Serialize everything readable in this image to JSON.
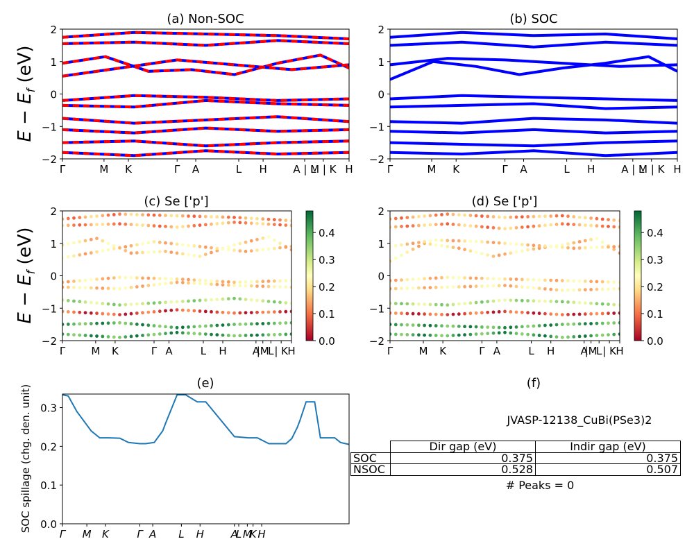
{
  "y_axis_label_top": "E − E",
  "y_axis_label_sub": "f",
  "y_axis_label_unit": " (eV)",
  "chart_data": [
    {
      "type": "line",
      "title": "(a) Non-SOC",
      "ylim": [
        -2,
        2
      ],
      "yticks": [
        "2",
        "1",
        "0",
        "−1",
        "−2"
      ],
      "xticks": [
        "Γ",
        "M",
        "K",
        "Γ",
        "A",
        "L",
        "H",
        "A | L",
        "M | K",
        "H"
      ],
      "colors": {
        "spin_up": "#0000ff",
        "spin_down": "#ff0000"
      },
      "series": [
        {
          "x": [
            0,
            0.15,
            0.3,
            0.45,
            0.6,
            0.75,
            0.9,
            1.0
          ],
          "y": [
            0.95,
            1.15,
            0.7,
            0.75,
            0.6,
            0.95,
            1.2,
            0.8
          ]
        },
        {
          "x": [
            0,
            0.2,
            0.4,
            0.6,
            0.8,
            1.0
          ],
          "y": [
            0.55,
            0.8,
            1.05,
            0.9,
            0.75,
            0.9
          ]
        },
        {
          "x": [
            0,
            0.25,
            0.5,
            0.75,
            1.0
          ],
          "y": [
            1.55,
            1.6,
            1.5,
            1.65,
            1.55
          ]
        },
        {
          "x": [
            0,
            0.25,
            0.5,
            0.75,
            1.0
          ],
          "y": [
            1.75,
            1.9,
            1.85,
            1.8,
            1.7
          ]
        },
        {
          "x": [
            0,
            0.25,
            0.5,
            0.75,
            1.0
          ],
          "y": [
            -0.2,
            -0.05,
            -0.1,
            -0.2,
            -0.15
          ]
        },
        {
          "x": [
            0,
            0.25,
            0.5,
            0.75,
            1.0
          ],
          "y": [
            -0.35,
            -0.4,
            -0.2,
            -0.3,
            -0.35
          ]
        },
        {
          "x": [
            0,
            0.25,
            0.5,
            0.75,
            1.0
          ],
          "y": [
            -0.75,
            -0.9,
            -0.8,
            -0.7,
            -0.85
          ]
        },
        {
          "x": [
            0,
            0.25,
            0.5,
            0.75,
            1.0
          ],
          "y": [
            -1.1,
            -1.2,
            -1.05,
            -1.15,
            -1.1
          ]
        },
        {
          "x": [
            0,
            0.25,
            0.5,
            0.75,
            1.0
          ],
          "y": [
            -1.5,
            -1.45,
            -1.6,
            -1.5,
            -1.45
          ]
        },
        {
          "x": [
            0,
            0.25,
            0.5,
            0.75,
            1.0
          ],
          "y": [
            -1.8,
            -1.9,
            -1.75,
            -1.85,
            -1.8
          ]
        }
      ]
    },
    {
      "type": "line",
      "title": "(b) SOC",
      "ylim": [
        -2,
        2
      ],
      "yticks": [
        "2",
        "1",
        "0",
        "−1",
        "−2"
      ],
      "xticks": [
        "Γ",
        "M",
        "K",
        "Γ",
        "A",
        "L",
        "H",
        "A | L",
        "M | K",
        "H"
      ],
      "colors": {
        "bands": "#0000ff"
      },
      "series": [
        {
          "x": [
            0,
            0.15,
            0.3,
            0.45,
            0.6,
            0.75,
            0.9,
            1.0
          ],
          "y": [
            0.45,
            1.0,
            0.85,
            0.6,
            0.8,
            0.95,
            1.15,
            0.7
          ]
        },
        {
          "x": [
            0,
            0.2,
            0.4,
            0.6,
            0.8,
            1.0
          ],
          "y": [
            0.9,
            1.1,
            1.05,
            0.95,
            0.85,
            0.9
          ]
        },
        {
          "x": [
            0,
            0.25,
            0.5,
            0.75,
            1.0
          ],
          "y": [
            1.5,
            1.6,
            1.45,
            1.6,
            1.5
          ]
        },
        {
          "x": [
            0,
            0.25,
            0.5,
            0.75,
            1.0
          ],
          "y": [
            1.75,
            1.9,
            1.8,
            1.85,
            1.7
          ]
        },
        {
          "x": [
            0,
            0.25,
            0.5,
            0.75,
            1.0
          ],
          "y": [
            -0.15,
            -0.05,
            -0.1,
            -0.15,
            -0.2
          ]
        },
        {
          "x": [
            0,
            0.25,
            0.5,
            0.75,
            1.0
          ],
          "y": [
            -0.4,
            -0.35,
            -0.3,
            -0.45,
            -0.4
          ]
        },
        {
          "x": [
            0,
            0.25,
            0.5,
            0.75,
            1.0
          ],
          "y": [
            -0.85,
            -0.9,
            -0.75,
            -0.8,
            -0.9
          ]
        },
        {
          "x": [
            0,
            0.25,
            0.5,
            0.75,
            1.0
          ],
          "y": [
            -1.15,
            -1.2,
            -1.1,
            -1.2,
            -1.15
          ]
        },
        {
          "x": [
            0,
            0.25,
            0.5,
            0.75,
            1.0
          ],
          "y": [
            -1.5,
            -1.55,
            -1.6,
            -1.5,
            -1.45
          ]
        },
        {
          "x": [
            0,
            0.25,
            0.5,
            0.75,
            1.0
          ],
          "y": [
            -1.8,
            -1.85,
            -1.75,
            -1.9,
            -1.8
          ]
        }
      ]
    },
    {
      "type": "scatter",
      "title": "(c)  Se ['p']",
      "ylim": [
        -2,
        2
      ],
      "yticks": [
        "2",
        "1",
        "0",
        "−1",
        "−2"
      ],
      "xticks": [
        "Γ",
        "M",
        "K",
        "Γ",
        "A",
        "L",
        "H",
        "A",
        "|M",
        "L",
        "| K",
        "H"
      ],
      "colorbar": {
        "range": [
          0.0,
          0.48
        ],
        "ticks": [
          "0.4",
          "0.3",
          "0.2",
          "0.1",
          "0.0"
        ],
        "colormap": "RdYlGn"
      }
    },
    {
      "type": "scatter",
      "title": "(d) Se ['p']",
      "ylim": [
        -2,
        2
      ],
      "yticks": [
        "2",
        "1",
        "0",
        "−1",
        "−2"
      ],
      "xticks": [
        "Γ",
        "M",
        "K",
        "Γ",
        "A",
        "L",
        "H",
        "A",
        "|M",
        "L",
        "| K",
        "H"
      ],
      "colorbar": {
        "range": [
          0.0,
          0.48
        ],
        "ticks": [
          "0.4",
          "0.3",
          "0.2",
          "0.1",
          "0.0"
        ],
        "colormap": "RdYlGn"
      }
    },
    {
      "type": "line",
      "title": "(e)",
      "ylabel": "SOC spillage (chg. den. unit)",
      "ylim": [
        0.0,
        0.335
      ],
      "yticks": [
        "0.3",
        "0.2",
        "0.1",
        "0.0"
      ],
      "xticks": [
        "Γ",
        "M",
        "K",
        "Γ",
        "A",
        "L",
        "H",
        "A",
        "L",
        "M",
        "K",
        "H"
      ],
      "color": "#1f77b4",
      "x": [
        0,
        0.02,
        0.05,
        0.1,
        0.13,
        0.16,
        0.2,
        0.23,
        0.27,
        0.29,
        0.32,
        0.35,
        0.36,
        0.4,
        0.43,
        0.47,
        0.5,
        0.55,
        0.6,
        0.65,
        0.68,
        0.72,
        0.75,
        0.78,
        0.8,
        0.82,
        0.83,
        0.85,
        0.88,
        0.9,
        0.91,
        0.93,
        0.95,
        0.97,
        1.0
      ],
      "y": [
        0.333,
        0.33,
        0.29,
        0.24,
        0.222,
        0.222,
        0.221,
        0.21,
        0.207,
        0.207,
        0.21,
        0.24,
        0.26,
        0.333,
        0.333,
        0.315,
        0.315,
        0.27,
        0.225,
        0.222,
        0.222,
        0.207,
        0.207,
        0.207,
        0.22,
        0.25,
        0.27,
        0.315,
        0.315,
        0.222,
        0.222,
        0.222,
        0.222,
        0.21,
        0.205
      ]
    }
  ],
  "panel_f": {
    "title": "(f)",
    "material": "JVASP-12138_CuBi(PSe3)2",
    "headers": [
      "Dir gap (eV)",
      "Indir gap (eV)"
    ],
    "rows": [
      {
        "label": "SOC",
        "dir": "0.375",
        "indir": "0.375"
      },
      {
        "label": "NSOC",
        "dir": "0.528",
        "indir": "0.507"
      }
    ],
    "peaks": "# Peaks = 0"
  }
}
